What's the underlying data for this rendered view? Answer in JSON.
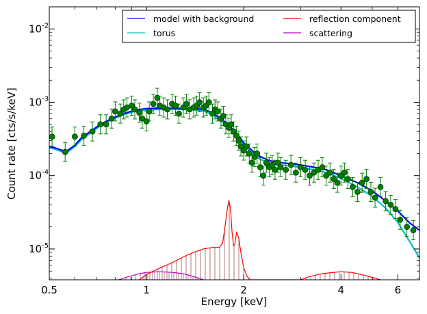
{
  "chart_data": {
    "type": "line",
    "xlabel": "Energy [keV]",
    "ylabel": "Count rate [cts/s/keV]",
    "x_scale": "log",
    "y_scale": "log",
    "xlim": [
      0.5,
      7.0
    ],
    "ylim": [
      3.8e-06,
      0.02
    ],
    "x_ticks": [
      {
        "value": 0.5,
        "label": "0.5"
      },
      {
        "value": 1,
        "label": "1"
      },
      {
        "value": 2,
        "label": "2"
      },
      {
        "value": 4,
        "label": "4"
      },
      {
        "value": 6,
        "label": "6"
      }
    ],
    "y_ticks": [
      {
        "value": 1e-05,
        "base": "10",
        "exp": "-5"
      },
      {
        "value": 0.0001,
        "base": "10",
        "exp": "-4"
      },
      {
        "value": 0.001,
        "base": "10",
        "exp": "-3"
      },
      {
        "value": 0.01,
        "base": "10",
        "exp": "-2"
      }
    ],
    "legend_position": "top-right",
    "grid": false,
    "series": [
      {
        "name": "model with background",
        "color": "#0000ff",
        "x": [
          0.5,
          0.52,
          0.55,
          0.57,
          0.6,
          0.63,
          0.67,
          0.72,
          0.78,
          0.85,
          0.92,
          1.0,
          1.1,
          1.2,
          1.3,
          1.4,
          1.5,
          1.6,
          1.7,
          1.8,
          1.9,
          2.0,
          2.2,
          2.4,
          2.6,
          2.8,
          3.0,
          3.3,
          3.6,
          4.0,
          4.5,
          5.0,
          5.5,
          6.0,
          6.5,
          7.0
        ],
        "y": [
          0.00025,
          0.00024,
          0.00022,
          0.00022,
          0.00026,
          0.00033,
          0.0004,
          0.0005,
          0.0006,
          0.0007,
          0.00078,
          0.00082,
          0.00083,
          0.00083,
          0.00082,
          0.00082,
          0.0008,
          0.00072,
          0.0006,
          0.00048,
          0.00038,
          0.00028,
          0.00019,
          0.00016,
          0.00015,
          0.000145,
          0.00014,
          0.00013,
          0.00012,
          0.0001,
          8e-05,
          6.2e-05,
          4.5e-05,
          3.3e-05,
          2.3e-05,
          1.8e-05
        ]
      },
      {
        "name": "torus",
        "color": "#00bfbf",
        "x": [
          0.5,
          0.52,
          0.55,
          0.57,
          0.6,
          0.63,
          0.67,
          0.72,
          0.78,
          0.85,
          0.92,
          1.0,
          1.1,
          1.2,
          1.3,
          1.4,
          1.5,
          1.6,
          1.7,
          1.8,
          1.9,
          2.0,
          2.2,
          2.4,
          2.6,
          2.8,
          3.0,
          3.3,
          3.6,
          4.0,
          4.5,
          5.0,
          5.5,
          6.0,
          6.5,
          7.0
        ],
        "y": [
          0.00024,
          0.00023,
          0.00021,
          0.00021,
          0.00025,
          0.00031,
          0.00038,
          0.00048,
          0.00058,
          0.00068,
          0.00075,
          0.00079,
          0.0008,
          0.0008,
          0.0008,
          0.00079,
          0.00076,
          0.00068,
          0.00056,
          0.00045,
          0.00035,
          0.00026,
          0.000175,
          0.000148,
          0.00014,
          0.000135,
          0.00013,
          0.00012,
          0.00011,
          9.2e-05,
          7e-05,
          5.2e-05,
          3.6e-05,
          2.3e-05,
          1.3e-05,
          7.5e-06
        ]
      },
      {
        "name": "reflection component",
        "color": "#ff0000",
        "x": [
          0.95,
          1.0,
          1.1,
          1.2,
          1.3,
          1.4,
          1.5,
          1.6,
          1.68,
          1.72,
          1.75,
          1.78,
          1.8,
          1.82,
          1.84,
          1.86,
          1.88,
          1.9,
          1.93,
          1.96,
          2.0,
          2.05,
          2.1,
          3.0,
          3.2,
          3.5,
          3.8,
          4.0,
          4.3,
          4.6,
          5.0,
          5.3
        ],
        "y": [
          3.8e-06,
          4.5e-06,
          5.5e-06,
          6.5e-06,
          7.8e-06,
          9e-06,
          1e-05,
          1.05e-05,
          1.05e-05,
          1.2e-05,
          2e-05,
          3.6e-05,
          4.6e-05,
          3.5e-05,
          1.7e-05,
          1.1e-05,
          1.2e-05,
          1.7e-05,
          1.4e-05,
          9e-06,
          5.5e-06,
          4.2e-06,
          3.8e-06,
          3.8e-06,
          4.2e-06,
          4.6e-06,
          4.8e-06,
          4.9e-06,
          4.8e-06,
          4.5e-06,
          4.1e-06,
          3.8e-06
        ]
      },
      {
        "name": "scattering",
        "color": "#bf00bf",
        "x": [
          0.82,
          0.88,
          0.95,
          1.0,
          1.1,
          1.2,
          1.3,
          1.4,
          1.5
        ],
        "y": [
          3.8e-06,
          4.2e-06,
          4.6e-06,
          4.8e-06,
          4.9e-06,
          4.8e-06,
          4.6e-06,
          4.2e-06,
          3.8e-06
        ]
      }
    ],
    "data_points": {
      "color": "#008000",
      "x": [
        0.51,
        0.56,
        0.6,
        0.64,
        0.68,
        0.72,
        0.75,
        0.78,
        0.8,
        0.83,
        0.85,
        0.87,
        0.9,
        0.92,
        0.95,
        0.97,
        1.0,
        1.02,
        1.05,
        1.08,
        1.1,
        1.13,
        1.16,
        1.2,
        1.23,
        1.26,
        1.3,
        1.33,
        1.36,
        1.4,
        1.43,
        1.46,
        1.5,
        1.53,
        1.56,
        1.6,
        1.63,
        1.66,
        1.7,
        1.73,
        1.76,
        1.8,
        1.83,
        1.86,
        1.9,
        1.93,
        1.96,
        2.0,
        2.04,
        2.08,
        2.12,
        2.16,
        2.2,
        2.25,
        2.3,
        2.35,
        2.4,
        2.45,
        2.5,
        2.55,
        2.6,
        2.7,
        2.8,
        2.9,
        3.0,
        3.1,
        3.2,
        3.3,
        3.4,
        3.5,
        3.6,
        3.7,
        3.8,
        3.9,
        4.0,
        4.1,
        4.2,
        4.35,
        4.5,
        4.65,
        4.8,
        4.95,
        5.1,
        5.3,
        5.5,
        5.7,
        5.9,
        6.1,
        6.4,
        6.7
      ],
      "y": [
        0.00034,
        0.00021,
        0.00034,
        0.00035,
        0.0004,
        0.0005,
        0.0005,
        0.0006,
        0.00075,
        0.0007,
        0.0008,
        0.00085,
        0.0009,
        0.0008,
        0.00072,
        0.0006,
        0.00055,
        0.00075,
        0.00095,
        0.00115,
        0.0009,
        0.00085,
        0.0008,
        0.00095,
        0.0009,
        0.0007,
        0.00085,
        0.00095,
        0.0008,
        0.00085,
        0.0009,
        0.001,
        0.00085,
        0.0009,
        0.001,
        0.0007,
        0.0008,
        0.00075,
        0.0006,
        0.00065,
        0.0005,
        0.00045,
        0.0005,
        0.0004,
        0.00035,
        0.0003,
        0.00025,
        0.00022,
        0.00025,
        0.0002,
        0.00015,
        0.00018,
        0.0002,
        0.00013,
        0.0001,
        0.00015,
        0.00013,
        0.00014,
        0.00012,
        0.00015,
        0.00013,
        0.00012,
        0.00014,
        0.00011,
        0.00013,
        0.00012,
        0.0001,
        0.00011,
        0.00012,
        0.00013,
        0.0001,
        0.00011,
        9e-05,
        8e-05,
        0.0001,
        0.00011,
        9e-05,
        7e-05,
        6e-05,
        8e-05,
        9e-05,
        6e-05,
        5e-05,
        7e-05,
        4.5e-05,
        4e-05,
        3.5e-05,
        2.5e-05,
        2e-05,
        1.8e-05
      ],
      "err_factor": 1.35
    }
  }
}
